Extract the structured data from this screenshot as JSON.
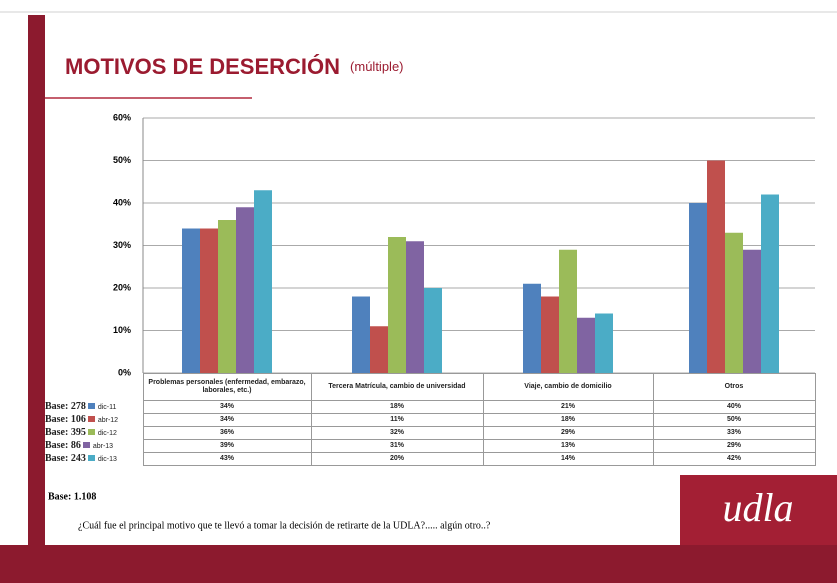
{
  "chart_data": {
    "type": "bar",
    "title": "MOTIVOS DE DESERCIÓN",
    "subtitle": "(múltiple)",
    "categories": [
      "Problemas personales (enfermedad, embarazo, laborales, etc.)",
      "Tercera Matrícula, cambio de universidad",
      "Viaje, cambio de domicilio",
      "Otros"
    ],
    "series": [
      {
        "name": "dic-11",
        "base": "Base: 278",
        "color": "#4f81bd",
        "values": [
          34,
          18,
          21,
          40
        ],
        "value_labels": [
          "34%",
          "18%",
          "21%",
          "40%"
        ]
      },
      {
        "name": "abr-12",
        "base": "Base: 106",
        "color": "#c0504d",
        "values": [
          34,
          11,
          18,
          50
        ],
        "value_labels": [
          "34%",
          "11%",
          "18%",
          "50%"
        ]
      },
      {
        "name": "dic-12",
        "base": "Base: 395",
        "color": "#9bbb59",
        "values": [
          36,
          32,
          29,
          33
        ],
        "value_labels": [
          "36%",
          "32%",
          "29%",
          "33%"
        ]
      },
      {
        "name": "abr-13",
        "base": "Base: 86",
        "color": "#8064a2",
        "values": [
          39,
          31,
          13,
          29
        ],
        "value_labels": [
          "39%",
          "31%",
          "13%",
          "29%"
        ]
      },
      {
        "name": "dic-13",
        "base": "Base: 243",
        "color": "#4bacc6",
        "values": [
          43,
          20,
          14,
          42
        ],
        "value_labels": [
          "43%",
          "20%",
          "14%",
          "42%"
        ]
      }
    ],
    "ylim": [
      0,
      60
    ],
    "yticks": [
      {
        "value": 0,
        "label": "0%"
      },
      {
        "value": 10,
        "label": "10%"
      },
      {
        "value": 20,
        "label": "20%"
      },
      {
        "value": 30,
        "label": "30%"
      },
      {
        "value": 40,
        "label": "40%"
      },
      {
        "value": 50,
        "label": "50%"
      },
      {
        "value": 60,
        "label": "60%"
      }
    ],
    "grid": true,
    "total_base": "Base: 1.108",
    "question": "¿Cuál fue el principal motivo que te llevó a tomar la decisión de retirarte de la UDLA?..... algún otro..?",
    "logo": "udla"
  }
}
